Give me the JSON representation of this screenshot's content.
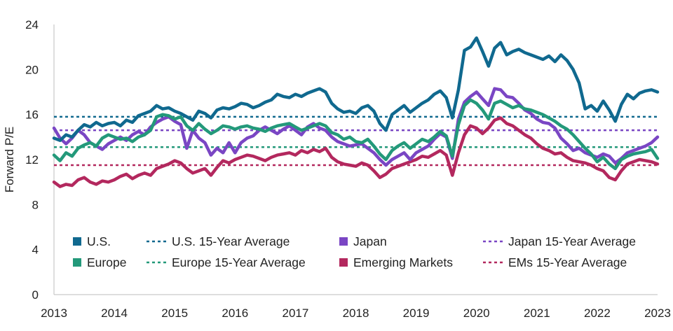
{
  "chart_data": {
    "type": "line",
    "title": "",
    "xlabel": "",
    "ylabel": "Forward P/E",
    "xlim": [
      2013,
      2023
    ],
    "ylim": [
      0,
      24
    ],
    "x_ticks": [
      "2013",
      "2014",
      "2015",
      "2016",
      "2017",
      "2018",
      "2019",
      "2020",
      "2021",
      "2022",
      "2023"
    ],
    "y_ticks": [
      "0",
      "4",
      "8",
      "12",
      "16",
      "20",
      "24"
    ],
    "grid": false,
    "legend_position": "bottom-inside",
    "series": [
      {
        "name": "U.S.",
        "color": "#10698f",
        "style": "solid",
        "x": [
          2013.0,
          2013.1,
          2013.2,
          2013.3,
          2013.4,
          2013.5,
          2013.6,
          2013.7,
          2013.8,
          2013.9,
          2014.0,
          2014.1,
          2014.2,
          2014.3,
          2014.4,
          2014.5,
          2014.6,
          2014.7,
          2014.8,
          2014.9,
          2015.0,
          2015.1,
          2015.2,
          2015.3,
          2015.4,
          2015.5,
          2015.6,
          2015.7,
          2015.8,
          2015.9,
          2016.0,
          2016.1,
          2016.2,
          2016.3,
          2016.4,
          2016.5,
          2016.6,
          2016.7,
          2016.8,
          2016.9,
          2017.0,
          2017.1,
          2017.2,
          2017.3,
          2017.4,
          2017.5,
          2017.6,
          2017.7,
          2017.8,
          2017.9,
          2018.0,
          2018.1,
          2018.2,
          2018.3,
          2018.4,
          2018.5,
          2018.6,
          2018.7,
          2018.8,
          2018.9,
          2019.0,
          2019.1,
          2019.2,
          2019.3,
          2019.4,
          2019.5,
          2019.6,
          2019.7,
          2019.8,
          2019.9,
          2020.0,
          2020.1,
          2020.2,
          2020.3,
          2020.4,
          2020.5,
          2020.6,
          2020.7,
          2020.8,
          2020.9,
          2021.0,
          2021.1,
          2021.2,
          2021.3,
          2021.4,
          2021.5,
          2021.6,
          2021.7,
          2021.8,
          2021.9,
          2022.0,
          2022.1,
          2022.2,
          2022.3,
          2022.4,
          2022.5,
          2022.6,
          2022.7,
          2022.8,
          2022.9,
          2023.0
        ],
        "y": [
          13.9,
          13.7,
          14.2,
          14.0,
          14.6,
          15.1,
          14.9,
          15.3,
          15.0,
          15.2,
          15.3,
          15.0,
          15.5,
          15.3,
          15.9,
          16.1,
          16.3,
          16.8,
          16.5,
          16.6,
          16.3,
          16.1,
          15.8,
          15.5,
          16.3,
          16.1,
          15.7,
          16.4,
          16.6,
          16.5,
          16.7,
          17.0,
          16.9,
          16.6,
          16.8,
          17.1,
          17.3,
          17.8,
          17.6,
          17.5,
          17.8,
          17.6,
          17.9,
          18.1,
          18.3,
          18.0,
          17.0,
          16.5,
          16.2,
          16.3,
          16.1,
          16.6,
          16.8,
          16.3,
          15.2,
          14.6,
          16.0,
          16.4,
          16.8,
          16.2,
          16.6,
          17.0,
          17.3,
          17.8,
          18.1,
          17.5,
          15.7,
          18.2,
          21.7,
          22.0,
          22.8,
          21.6,
          20.3,
          21.9,
          22.4,
          21.3,
          21.6,
          21.8,
          21.5,
          21.3,
          21.1,
          20.9,
          21.2,
          20.7,
          21.3,
          20.8,
          20.0,
          18.8,
          16.5,
          16.8,
          16.3,
          17.2,
          16.4,
          15.4,
          16.9,
          17.8,
          17.4,
          17.9,
          18.1,
          18.2,
          18.0
        ]
      },
      {
        "name": "Europe",
        "color": "#23997a",
        "style": "solid",
        "x": [
          2013.0,
          2013.1,
          2013.2,
          2013.3,
          2013.4,
          2013.5,
          2013.6,
          2013.7,
          2013.8,
          2013.9,
          2014.0,
          2014.1,
          2014.2,
          2014.3,
          2014.4,
          2014.5,
          2014.6,
          2014.7,
          2014.8,
          2014.9,
          2015.0,
          2015.1,
          2015.2,
          2015.3,
          2015.4,
          2015.5,
          2015.6,
          2015.7,
          2015.8,
          2015.9,
          2016.0,
          2016.1,
          2016.2,
          2016.3,
          2016.4,
          2016.5,
          2016.6,
          2016.7,
          2016.8,
          2016.9,
          2017.0,
          2017.1,
          2017.2,
          2017.3,
          2017.4,
          2017.5,
          2017.6,
          2017.7,
          2017.8,
          2017.9,
          2018.0,
          2018.1,
          2018.2,
          2018.3,
          2018.4,
          2018.5,
          2018.6,
          2018.7,
          2018.8,
          2018.9,
          2019.0,
          2019.1,
          2019.2,
          2019.3,
          2019.4,
          2019.5,
          2019.6,
          2019.7,
          2019.8,
          2019.9,
          2020.0,
          2020.1,
          2020.2,
          2020.3,
          2020.4,
          2020.5,
          2020.6,
          2020.7,
          2020.8,
          2020.9,
          2021.0,
          2021.1,
          2021.2,
          2021.3,
          2021.4,
          2021.5,
          2021.6,
          2021.7,
          2021.8,
          2021.9,
          2022.0,
          2022.1,
          2022.2,
          2022.3,
          2022.4,
          2022.5,
          2022.6,
          2022.7,
          2022.8,
          2022.9,
          2023.0
        ],
        "y": [
          12.4,
          11.9,
          12.6,
          12.3,
          13.0,
          13.3,
          13.5,
          13.2,
          13.9,
          14.2,
          14.0,
          13.8,
          13.9,
          13.6,
          14.0,
          14.2,
          14.6,
          15.8,
          16.0,
          15.9,
          15.6,
          15.8,
          15.0,
          14.6,
          15.2,
          14.7,
          14.3,
          14.6,
          15.0,
          14.9,
          14.7,
          14.9,
          15.0,
          14.8,
          14.7,
          14.5,
          14.8,
          15.0,
          15.1,
          15.2,
          14.9,
          14.6,
          14.8,
          15.0,
          15.2,
          15.0,
          14.4,
          14.2,
          13.8,
          14.0,
          13.6,
          13.5,
          13.8,
          13.2,
          12.5,
          12.0,
          12.8,
          13.2,
          13.5,
          13.0,
          13.4,
          13.8,
          13.6,
          14.0,
          14.5,
          14.1,
          12.3,
          15.1,
          16.8,
          17.3,
          17.0,
          16.4,
          15.6,
          17.0,
          17.2,
          16.9,
          16.6,
          16.8,
          16.5,
          16.4,
          16.2,
          16.0,
          15.7,
          15.4,
          15.0,
          14.7,
          14.2,
          13.6,
          13.0,
          12.5,
          11.8,
          12.2,
          11.6,
          11.2,
          12.0,
          12.3,
          12.5,
          12.6,
          12.7,
          12.9,
          12.1
        ]
      },
      {
        "name": "Japan",
        "color": "#7a46c4",
        "style": "solid",
        "x": [
          2013.0,
          2013.1,
          2013.2,
          2013.3,
          2013.4,
          2013.5,
          2013.6,
          2013.7,
          2013.8,
          2013.9,
          2014.0,
          2014.1,
          2014.2,
          2014.3,
          2014.4,
          2014.5,
          2014.6,
          2014.7,
          2014.8,
          2014.9,
          2015.0,
          2015.1,
          2015.2,
          2015.3,
          2015.4,
          2015.5,
          2015.6,
          2015.7,
          2015.8,
          2015.9,
          2016.0,
          2016.1,
          2016.2,
          2016.3,
          2016.4,
          2016.5,
          2016.6,
          2016.7,
          2016.8,
          2016.9,
          2017.0,
          2017.1,
          2017.2,
          2017.3,
          2017.4,
          2017.5,
          2017.6,
          2017.7,
          2017.8,
          2017.9,
          2018.0,
          2018.1,
          2018.2,
          2018.3,
          2018.4,
          2018.5,
          2018.6,
          2018.7,
          2018.8,
          2018.9,
          2019.0,
          2019.1,
          2019.2,
          2019.3,
          2019.4,
          2019.5,
          2019.6,
          2019.7,
          2019.8,
          2019.9,
          2020.0,
          2020.1,
          2020.2,
          2020.3,
          2020.4,
          2020.5,
          2020.6,
          2020.7,
          2020.8,
          2020.9,
          2021.0,
          2021.1,
          2021.2,
          2021.3,
          2021.4,
          2021.5,
          2021.6,
          2021.7,
          2021.8,
          2021.9,
          2022.0,
          2022.1,
          2022.2,
          2022.3,
          2022.4,
          2022.5,
          2022.6,
          2022.7,
          2022.8,
          2022.9,
          2023.0
        ],
        "y": [
          14.8,
          13.9,
          13.4,
          13.9,
          14.6,
          14.2,
          13.5,
          13.2,
          12.9,
          13.4,
          13.7,
          14.0,
          13.7,
          14.2,
          14.5,
          14.2,
          14.9,
          15.3,
          15.6,
          15.8,
          15.4,
          15.1,
          13.0,
          14.6,
          13.9,
          13.5,
          12.4,
          13.0,
          12.6,
          13.5,
          12.6,
          13.5,
          13.9,
          14.1,
          14.6,
          14.9,
          14.6,
          14.3,
          14.7,
          15.0,
          14.6,
          14.2,
          14.9,
          15.2,
          14.8,
          14.6,
          14.0,
          13.6,
          13.4,
          13.2,
          13.3,
          13.4,
          13.0,
          12.6,
          12.0,
          11.5,
          12.0,
          12.3,
          12.6,
          12.0,
          12.6,
          12.9,
          13.2,
          13.8,
          14.3,
          14.0,
          12.1,
          15.6,
          17.1,
          17.6,
          18.0,
          17.4,
          16.8,
          18.3,
          18.2,
          17.6,
          17.5,
          17.0,
          16.4,
          16.1,
          15.6,
          15.3,
          15.2,
          14.8,
          13.9,
          13.4,
          12.8,
          13.0,
          12.6,
          12.4,
          12.2,
          12.5,
          12.3,
          11.7,
          12.1,
          12.6,
          12.8,
          13.0,
          13.2,
          13.5,
          14.0
        ]
      },
      {
        "name": "Emerging Markets",
        "color": "#b3285e",
        "style": "solid",
        "x": [
          2013.0,
          2013.1,
          2013.2,
          2013.3,
          2013.4,
          2013.5,
          2013.6,
          2013.7,
          2013.8,
          2013.9,
          2014.0,
          2014.1,
          2014.2,
          2014.3,
          2014.4,
          2014.5,
          2014.6,
          2014.7,
          2014.8,
          2014.9,
          2015.0,
          2015.1,
          2015.2,
          2015.3,
          2015.4,
          2015.5,
          2015.6,
          2015.7,
          2015.8,
          2015.9,
          2016.0,
          2016.1,
          2016.2,
          2016.3,
          2016.4,
          2016.5,
          2016.6,
          2016.7,
          2016.8,
          2016.9,
          2017.0,
          2017.1,
          2017.2,
          2017.3,
          2017.4,
          2017.5,
          2017.6,
          2017.7,
          2017.8,
          2017.9,
          2018.0,
          2018.1,
          2018.2,
          2018.3,
          2018.4,
          2018.5,
          2018.6,
          2018.7,
          2018.8,
          2018.9,
          2019.0,
          2019.1,
          2019.2,
          2019.3,
          2019.4,
          2019.5,
          2019.6,
          2019.7,
          2019.8,
          2019.9,
          2020.0,
          2020.1,
          2020.2,
          2020.3,
          2020.4,
          2020.5,
          2020.6,
          2020.7,
          2020.8,
          2020.9,
          2021.0,
          2021.1,
          2021.2,
          2021.3,
          2021.4,
          2021.5,
          2021.6,
          2021.7,
          2021.8,
          2021.9,
          2022.0,
          2022.1,
          2022.2,
          2022.3,
          2022.4,
          2022.5,
          2022.6,
          2022.7,
          2022.8,
          2022.9,
          2023.0
        ],
        "y": [
          10.0,
          9.6,
          9.8,
          9.7,
          10.2,
          10.4,
          10.0,
          9.8,
          10.1,
          10.0,
          10.2,
          10.5,
          10.7,
          10.3,
          10.6,
          10.8,
          10.6,
          11.2,
          11.4,
          11.6,
          11.9,
          11.7,
          11.2,
          10.8,
          11.0,
          11.2,
          10.6,
          11.3,
          11.9,
          11.7,
          12.0,
          12.2,
          12.4,
          12.3,
          12.1,
          11.9,
          12.2,
          12.4,
          12.5,
          12.6,
          12.4,
          12.8,
          12.6,
          12.9,
          12.7,
          13.0,
          12.2,
          11.8,
          11.6,
          11.5,
          11.4,
          11.7,
          11.5,
          11.0,
          10.4,
          10.7,
          11.2,
          11.4,
          11.6,
          11.8,
          12.0,
          12.3,
          12.2,
          12.5,
          12.8,
          12.4,
          10.6,
          12.6,
          14.2,
          15.0,
          14.8,
          14.3,
          14.8,
          15.5,
          15.7,
          15.2,
          15.0,
          14.6,
          14.2,
          13.9,
          13.4,
          13.0,
          12.8,
          12.5,
          12.6,
          12.2,
          11.9,
          11.8,
          11.7,
          11.5,
          11.2,
          11.0,
          10.4,
          10.2,
          11.0,
          11.6,
          11.8,
          12.0,
          11.9,
          11.8,
          11.6
        ]
      },
      {
        "name": "U.S. 15-Year Average",
        "color": "#10698f",
        "style": "dotted",
        "x": [
          2013,
          2023
        ],
        "y": [
          15.8,
          15.8
        ]
      },
      {
        "name": "Europe 15-Year Average",
        "color": "#23997a",
        "style": "dotted",
        "x": [
          2013,
          2023
        ],
        "y": [
          13.1,
          13.1
        ]
      },
      {
        "name": "Japan 15-Year Average",
        "color": "#7a46c4",
        "style": "dotted",
        "x": [
          2013,
          2023
        ],
        "y": [
          14.6,
          14.6
        ]
      },
      {
        "name": "EMs 15-Year Average",
        "color": "#b3285e",
        "style": "dotted",
        "x": [
          2013,
          2023
        ],
        "y": [
          11.5,
          11.5
        ]
      }
    ],
    "legend": [
      {
        "label": "U.S.",
        "type": "square",
        "color": "#10698f"
      },
      {
        "label": "U.S. 15-Year Average",
        "type": "dotted",
        "color": "#10698f"
      },
      {
        "label": "Japan",
        "type": "square",
        "color": "#7a46c4"
      },
      {
        "label": "Japan 15-Year Average",
        "type": "dotted",
        "color": "#7a46c4"
      },
      {
        "label": "Europe",
        "type": "square",
        "color": "#23997a"
      },
      {
        "label": "Europe 15-Year Average",
        "type": "dotted",
        "color": "#23997a"
      },
      {
        "label": "Emerging Markets",
        "type": "square",
        "color": "#b3285e"
      },
      {
        "label": "EMs 15-Year Average",
        "type": "dotted",
        "color": "#b3285e"
      }
    ]
  }
}
